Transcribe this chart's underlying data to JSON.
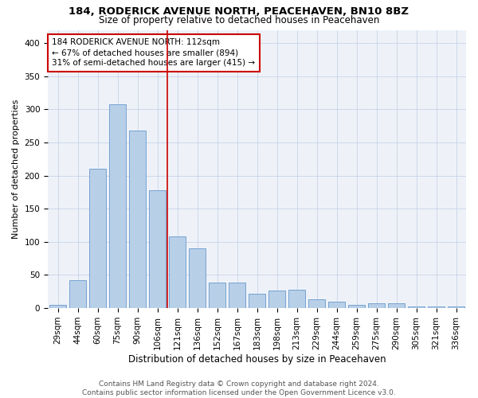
{
  "title1": "184, RODERICK AVENUE NORTH, PEACEHAVEN, BN10 8BZ",
  "title2": "Size of property relative to detached houses in Peacehaven",
  "xlabel": "Distribution of detached houses by size in Peacehaven",
  "ylabel": "Number of detached properties",
  "categories": [
    "29sqm",
    "44sqm",
    "60sqm",
    "75sqm",
    "90sqm",
    "106sqm",
    "121sqm",
    "136sqm",
    "152sqm",
    "167sqm",
    "183sqm",
    "198sqm",
    "213sqm",
    "229sqm",
    "244sqm",
    "259sqm",
    "275sqm",
    "290sqm",
    "305sqm",
    "321sqm",
    "336sqm"
  ],
  "values": [
    5,
    42,
    210,
    308,
    268,
    178,
    108,
    90,
    38,
    38,
    22,
    27,
    28,
    13,
    10,
    5,
    7,
    7,
    3,
    2,
    3
  ],
  "bar_color": "#b8cfe8",
  "bar_edge_color": "#6699cc",
  "vline_x": 5.5,
  "vline_color": "#cc0000",
  "annotation_line1": "184 RODERICK AVENUE NORTH: 112sqm",
  "annotation_line2": "← 67% of detached houses are smaller (894)",
  "annotation_line3": "31% of semi-detached houses are larger (415) →",
  "annotation_box_color": "#cc0000",
  "ylim": [
    0,
    420
  ],
  "yticks": [
    0,
    50,
    100,
    150,
    200,
    250,
    300,
    350,
    400
  ],
  "grid_color": "#c8d4e8",
  "background_color": "#eef2f8",
  "footer_text": "Contains HM Land Registry data © Crown copyright and database right 2024.\nContains public sector information licensed under the Open Government Licence v3.0.",
  "title1_fontsize": 9.5,
  "title2_fontsize": 8.5,
  "xlabel_fontsize": 8.5,
  "ylabel_fontsize": 8,
  "tick_fontsize": 7.5,
  "annotation_fontsize": 7.5,
  "footer_fontsize": 6.5
}
